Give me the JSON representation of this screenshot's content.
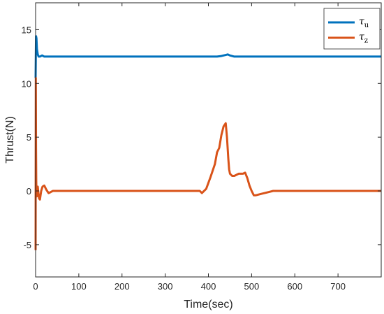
{
  "chart_data": {
    "type": "line",
    "title": "",
    "xlabel": "Time(sec)",
    "ylabel": "Thrust(N)",
    "xlim": [
      0,
      800
    ],
    "ylim": [
      -8,
      17.5
    ],
    "xticks": [
      0,
      100,
      200,
      300,
      400,
      500,
      600,
      700
    ],
    "yticks": [
      -5,
      0,
      5,
      10,
      15
    ],
    "grid": false,
    "legend_position": "top-right",
    "series": [
      {
        "name": "τu",
        "legend_base": "τ",
        "legend_sub": "u",
        "color": "#0072BD",
        "x": [
          0,
          0.5,
          1,
          2,
          3,
          5,
          7,
          10,
          15,
          20,
          30,
          50,
          100,
          200,
          300,
          400,
          420,
          430,
          440,
          445,
          450,
          460,
          480,
          500,
          600,
          700,
          800
        ],
        "y": [
          10.5,
          12.5,
          14.4,
          14.2,
          13.2,
          12.7,
          12.5,
          12.5,
          12.6,
          12.5,
          12.5,
          12.5,
          12.5,
          12.5,
          12.5,
          12.5,
          12.5,
          12.55,
          12.65,
          12.7,
          12.6,
          12.5,
          12.5,
          12.5,
          12.5,
          12.5,
          12.5
        ]
      },
      {
        "name": "τz",
        "legend_base": "τ",
        "legend_sub": "z",
        "color": "#D95319",
        "x": [
          0,
          0.5,
          1,
          1.5,
          2,
          3,
          4,
          5,
          6,
          8,
          10,
          13,
          16,
          20,
          25,
          30,
          35,
          40,
          50,
          100,
          200,
          300,
          380,
          385,
          395,
          405,
          415,
          420,
          425,
          430,
          435,
          440,
          443,
          446,
          448,
          450,
          455,
          460,
          465,
          470,
          475,
          480,
          485,
          490,
          495,
          500,
          505,
          510,
          520,
          530,
          540,
          550,
          560,
          600,
          700,
          800
        ],
        "y": [
          -5.5,
          10.5,
          4,
          1,
          0,
          -0.5,
          -0.4,
          0.4,
          0,
          -0.7,
          -0.8,
          0,
          0.4,
          0.5,
          0.1,
          -0.2,
          -0.1,
          0,
          0,
          0,
          0,
          0,
          0,
          -0.2,
          0.2,
          1.3,
          2.5,
          3.6,
          4,
          5.2,
          6,
          6.3,
          5,
          3,
          2,
          1.6,
          1.4,
          1.4,
          1.5,
          1.6,
          1.6,
          1.6,
          1.7,
          1.2,
          0.5,
          0,
          -0.4,
          -0.4,
          -0.3,
          -0.2,
          -0.1,
          0,
          0,
          0,
          0,
          0
        ]
      }
    ]
  }
}
